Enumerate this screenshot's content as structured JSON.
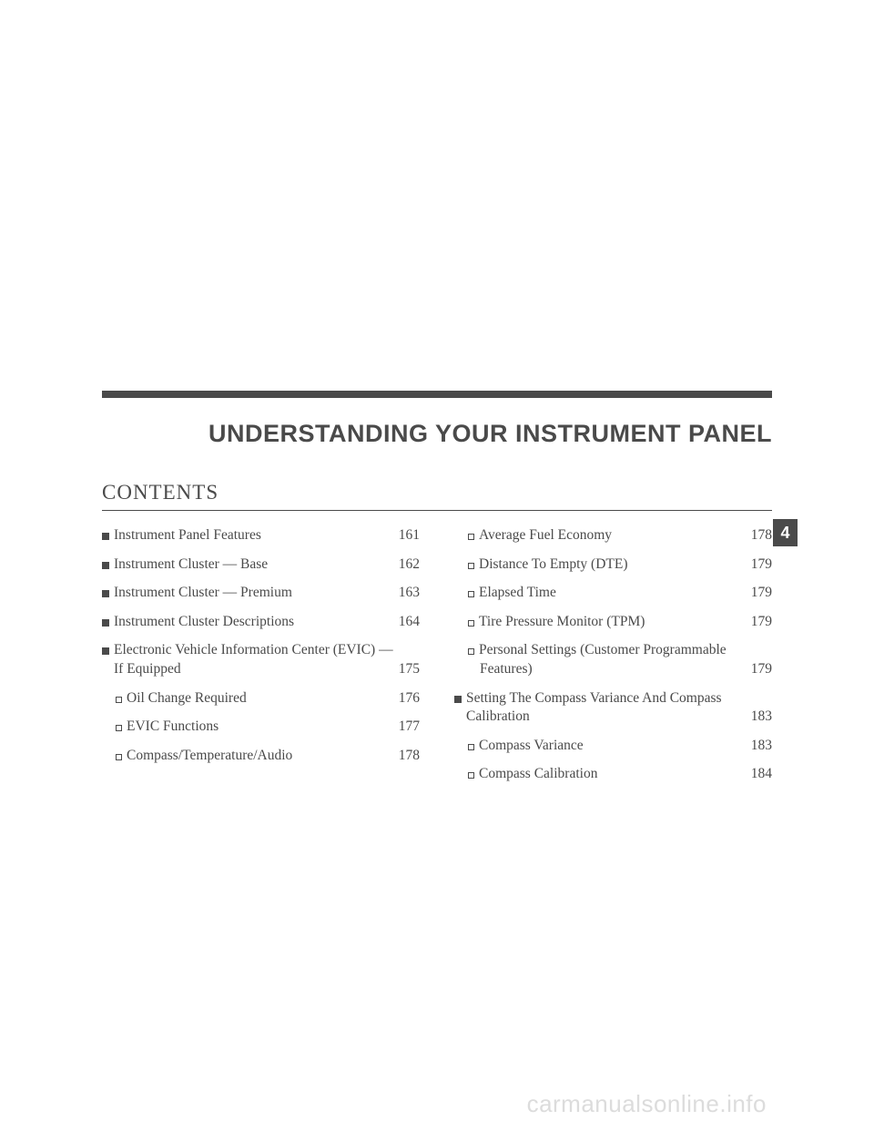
{
  "chapter_title": "UNDERSTANDING YOUR INSTRUMENT PANEL",
  "contents_label": "CONTENTS",
  "side_tab": "4",
  "watermark": "carmanualsonline.info",
  "left_col": [
    {
      "level": 0,
      "text": "Instrument Panel Features",
      "page": "161"
    },
    {
      "level": 0,
      "text": "Instrument Cluster — Base",
      "page": "162"
    },
    {
      "level": 0,
      "text": "Instrument Cluster — Premium",
      "page": "163"
    },
    {
      "level": 0,
      "text": "Instrument Cluster Descriptions",
      "page": "164"
    },
    {
      "level": 0,
      "text": "Electronic Vehicle Information Center (EVIC) —",
      "cont": "If Equipped",
      "page": "175"
    },
    {
      "level": 1,
      "text": "Oil Change Required",
      "page": "176"
    },
    {
      "level": 1,
      "text": "EVIC Functions",
      "page": "177"
    },
    {
      "level": 1,
      "text": "Compass/Temperature/Audio",
      "page": "178"
    }
  ],
  "right_col": [
    {
      "level": 1,
      "text": "Average Fuel Economy",
      "page": "178"
    },
    {
      "level": 1,
      "text": "Distance To Empty (DTE)",
      "page": "179"
    },
    {
      "level": 1,
      "text": "Elapsed Time",
      "page": "179"
    },
    {
      "level": 1,
      "text": "Tire Pressure Monitor (TPM)",
      "page": "179"
    },
    {
      "level": 1,
      "text": "Personal Settings (Customer Programmable",
      "cont": "Features)",
      "page": "179"
    },
    {
      "level": 0,
      "text": "Setting The Compass Variance And Compass",
      "cont": "Calibration",
      "page": "183"
    },
    {
      "level": 1,
      "text": "Compass Variance",
      "page": "183"
    },
    {
      "level": 1,
      "text": "Compass Calibration",
      "page": "184"
    }
  ]
}
